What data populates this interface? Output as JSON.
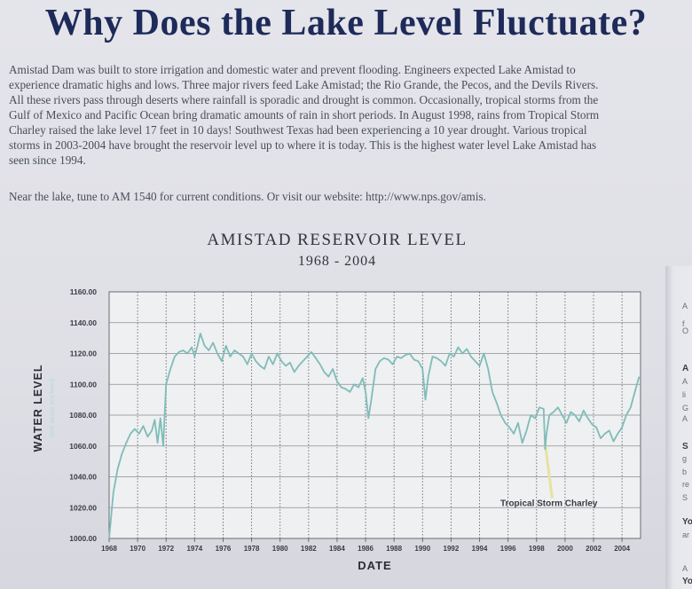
{
  "headline": "Why Does the Lake Level Fluctuate?",
  "intro_lines": [
    "Amistad Dam was built to store irrigation and domestic water and prevent flooding.  Engineers expected Lake Amistad to",
    "experience dramatic highs and lows.  Three major rivers feed Lake Amistad; the Rio Grande, the Pecos, and the Devils Rivers.",
    "All these rivers pass through deserts where rainfall is sporadic and drought is common.  Occasionally, tropical storms from the",
    "Gulf of Mexico and Pacific Ocean bring dramatic amounts of rain in short periods.  In August 1998, rains from Tropical Storm",
    "Charley raised the lake level 17 feet in 10 days!  Southwest Texas had been experiencing a 10 year drought. Various tropical",
    "storms in 2003-2004 have brought the reservoir level up to where it is today. This is the highest water level Lake Amistad has",
    "seen since 1994."
  ],
  "visit_text": "Near the lake, tune to AM 1540 for current conditions. Or visit our website: http://www.nps.gov/amis.",
  "right_strip_fragments": [
    "A",
    "f",
    "O",
    "A",
    "A",
    "li",
    "G",
    "A",
    "S",
    "g",
    "b",
    "re",
    "S",
    "Yo",
    "ar",
    "A",
    "Yo"
  ],
  "chart_data": {
    "type": "line",
    "title": "AMISTAD RESERVOIR LEVEL",
    "subtitle": "1968 - 2004",
    "xlabel": "DATE",
    "ylabel": "WATER LEVEL",
    "ylabel_sub": "(feet above sea level)",
    "xlim": [
      1968,
      2005.3
    ],
    "ylim": [
      1000,
      1160
    ],
    "x_ticks": [
      1968,
      1970,
      1972,
      1974,
      1976,
      1978,
      1980,
      1982,
      1984,
      1986,
      1988,
      1990,
      1992,
      1994,
      1996,
      1998,
      2000,
      2002,
      2004
    ],
    "y_ticks": [
      "1000.00",
      "1020.00",
      "1040.00",
      "1060.00",
      "1080.00",
      "1100.00",
      "1120.00",
      "1140.00",
      "1160.00"
    ],
    "grid": true,
    "line_color": "#7fbcb8",
    "annotation": {
      "text": "Tropical Storm Charley",
      "x": 1998.6,
      "y_from": 1062,
      "y_to": 1026,
      "color": "#e8e2a0"
    },
    "series": [
      {
        "x": [
          1968.0,
          1968.3,
          1968.6,
          1968.9,
          1969.2,
          1969.5,
          1969.8,
          1970.1,
          1970.4,
          1970.7,
          1971.0,
          1971.2,
          1971.4,
          1971.6,
          1971.8,
          1972.0,
          1972.3,
          1972.6,
          1972.9,
          1973.2,
          1973.5,
          1973.8,
          1974.0,
          1974.2,
          1974.4,
          1974.7,
          1975.0,
          1975.3,
          1975.6,
          1975.9,
          1976.2,
          1976.5,
          1976.8,
          1977.1,
          1977.4,
          1977.7,
          1978.0,
          1978.3,
          1978.6,
          1978.9,
          1979.2,
          1979.5,
          1979.8,
          1980.1,
          1980.4,
          1980.7,
          1981.0,
          1981.3,
          1981.6,
          1981.9,
          1982.2,
          1982.5,
          1982.8,
          1983.1,
          1983.4,
          1983.7,
          1984.0,
          1984.3,
          1984.6,
          1984.9,
          1985.2,
          1985.5,
          1985.8,
          1986.0,
          1986.2,
          1986.4,
          1986.7,
          1987.0,
          1987.3,
          1987.6,
          1987.9,
          1988.2,
          1988.5,
          1988.8,
          1989.1,
          1989.4,
          1989.7,
          1990.0,
          1990.2,
          1990.4,
          1990.7,
          1991.0,
          1991.3,
          1991.6,
          1991.9,
          1992.2,
          1992.5,
          1992.8,
          1993.1,
          1993.4,
          1993.7,
          1994.0,
          1994.3,
          1994.6,
          1994.9,
          1995.2,
          1995.5,
          1995.8,
          1996.1,
          1996.4,
          1996.7,
          1997.0,
          1997.3,
          1997.6,
          1997.9,
          1998.2,
          1998.5,
          1998.6,
          1998.7,
          1998.9,
          1999.2,
          1999.5,
          1999.8,
          2000.1,
          2000.4,
          2000.7,
          2001.0,
          2001.3,
          2001.6,
          2001.9,
          2002.2,
          2002.5,
          2002.8,
          2003.1,
          2003.4,
          2003.7,
          2004.0,
          2004.3,
          2004.6,
          2004.9,
          2005.2
        ],
        "y": [
          1000,
          1030,
          1045,
          1055,
          1062,
          1068,
          1071,
          1068,
          1073,
          1066,
          1070,
          1077,
          1062,
          1078,
          1060,
          1100,
          1110,
          1118,
          1121,
          1122,
          1120,
          1124,
          1118,
          1125,
          1133,
          1125,
          1122,
          1127,
          1120,
          1115,
          1125,
          1118,
          1122,
          1120,
          1118,
          1113,
          1120,
          1115,
          1112,
          1110,
          1118,
          1113,
          1120,
          1115,
          1112,
          1114,
          1108,
          1112,
          1115,
          1118,
          1121,
          1117,
          1113,
          1108,
          1105,
          1110,
          1102,
          1098,
          1097,
          1095,
          1100,
          1098,
          1104,
          1095,
          1078,
          1090,
          1110,
          1115,
          1117,
          1116,
          1113,
          1118,
          1117,
          1119,
          1120,
          1116,
          1115,
          1110,
          1090,
          1105,
          1118,
          1117,
          1115,
          1112,
          1120,
          1118,
          1124,
          1120,
          1123,
          1118,
          1115,
          1112,
          1120,
          1110,
          1095,
          1088,
          1080,
          1075,
          1072,
          1068,
          1075,
          1062,
          1070,
          1080,
          1078,
          1085,
          1084,
          1058,
          1068,
          1080,
          1082,
          1085,
          1080,
          1075,
          1082,
          1080,
          1076,
          1083,
          1078,
          1074,
          1072,
          1065,
          1068,
          1070,
          1063,
          1068,
          1072,
          1080,
          1085,
          1095,
          1105
        ]
      }
    ]
  }
}
